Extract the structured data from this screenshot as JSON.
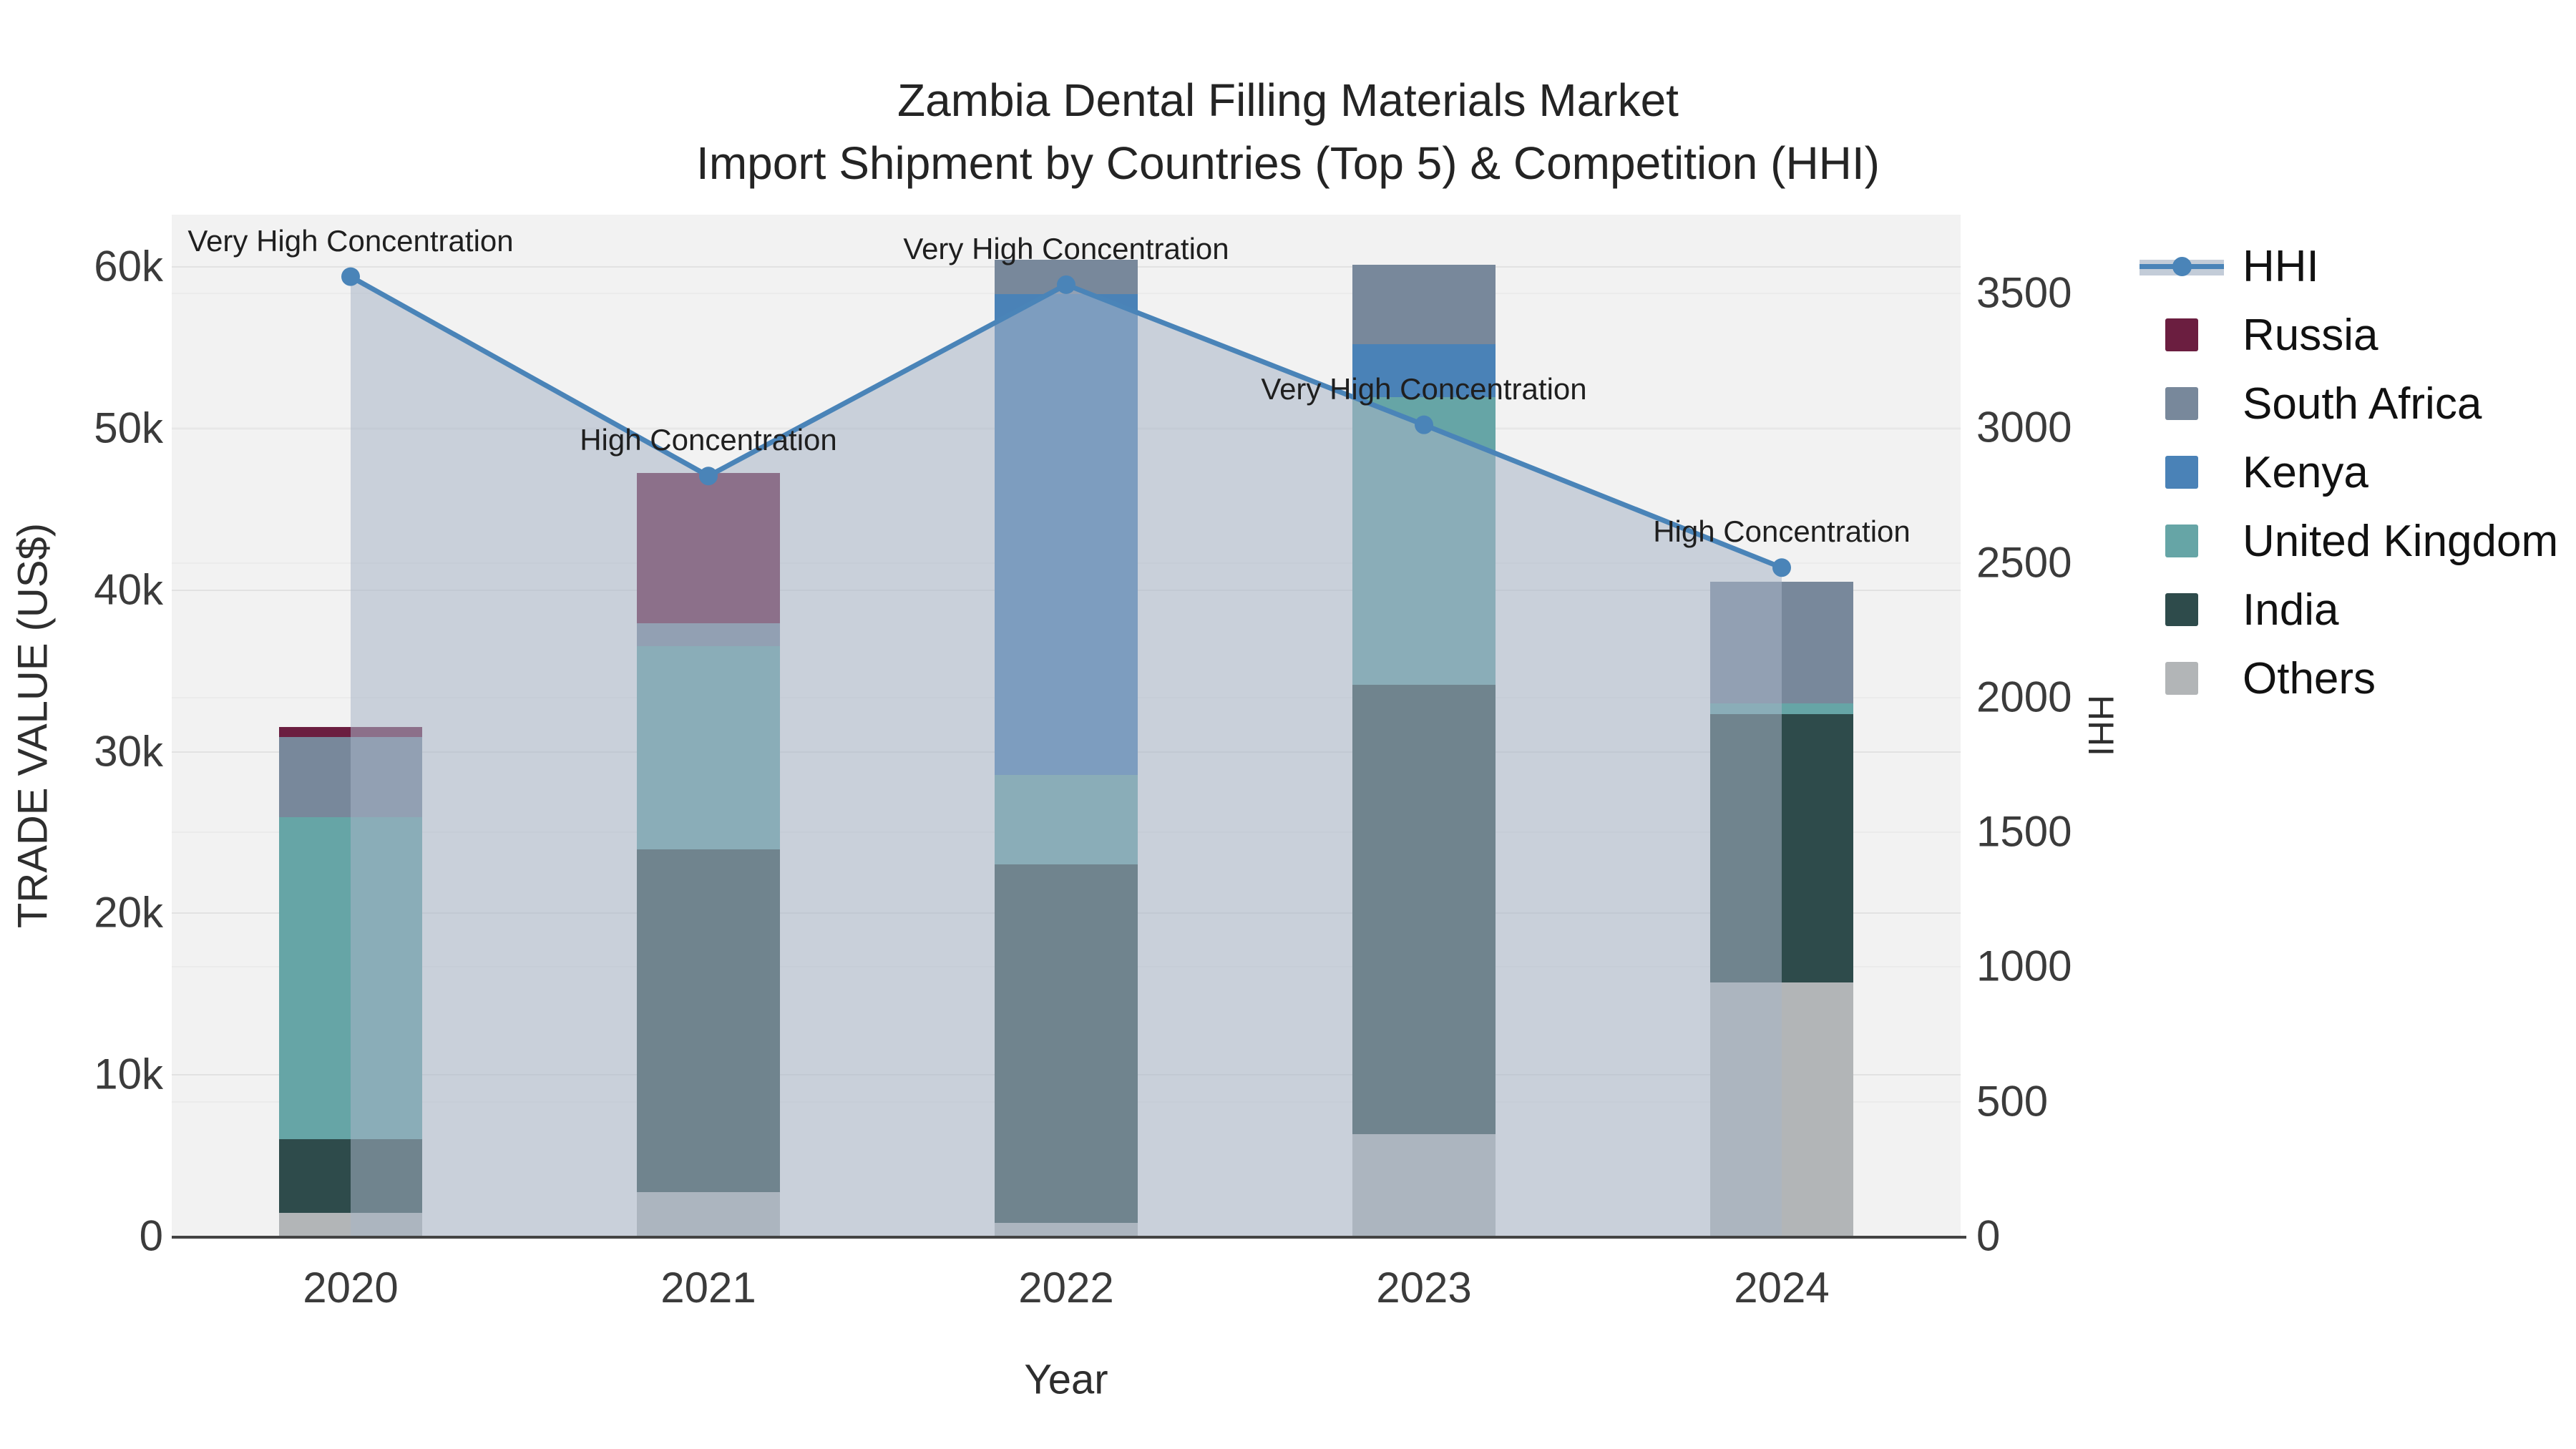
{
  "title": {
    "line1": "Zambia Dental Filling Materials Market",
    "line2": "Import Shipment by Countries (Top 5) & Competition (HHI)"
  },
  "axes": {
    "x": {
      "label": "Year"
    },
    "y_left": {
      "label": "TRADE VALUE (US$)"
    },
    "y_right": {
      "label": "HHI"
    }
  },
  "colors": {
    "russia": "#6B1E40",
    "south_africa": "#78889B",
    "kenya": "#4A82B7",
    "united_kingdom": "#66A5A6",
    "india": "#2E4B4B",
    "others": "#B2B5B7",
    "hhi_line": "#4A84B8",
    "hhi_fill": "rgba(168,181,199,0.55)",
    "legend_band": "#C3CCD8",
    "plot_bg": "#F2F2F2",
    "axis_line": "#444444"
  },
  "legend": {
    "items": [
      {
        "label": "HHI",
        "type": "line",
        "color_key": "hhi_line"
      },
      {
        "label": "Russia",
        "type": "swatch",
        "color_key": "russia"
      },
      {
        "label": "South Africa",
        "type": "swatch",
        "color_key": "south_africa"
      },
      {
        "label": "Kenya",
        "type": "swatch",
        "color_key": "kenya"
      },
      {
        "label": "United Kingdom",
        "type": "swatch",
        "color_key": "united_kingdom"
      },
      {
        "label": "India",
        "type": "swatch",
        "color_key": "india"
      },
      {
        "label": "Others",
        "type": "swatch",
        "color_key": "others"
      }
    ]
  },
  "chart_data": {
    "type": "bar",
    "subtype": "stacked-bar-with-line",
    "title": "Zambia Dental Filling Materials Market — Import Shipment by Countries (Top 5) & Competition (HHI)",
    "categories": [
      "2020",
      "2021",
      "2022",
      "2023",
      "2024"
    ],
    "xlabel": "Year",
    "ylabel_left": "TRADE VALUE (US$)",
    "ylabel_right": "HHI",
    "ylim_left": [
      0,
      63200
    ],
    "ylim_right": [
      0,
      3790
    ],
    "grid": true,
    "legend_position": "right",
    "yticks_left": {
      "values": [
        0,
        10000,
        20000,
        30000,
        40000,
        50000,
        60000
      ],
      "labels": [
        "0",
        "10k",
        "20k",
        "30k",
        "40k",
        "50k",
        "60k"
      ]
    },
    "yticks_right": {
      "values": [
        0,
        500,
        1000,
        1500,
        2000,
        2500,
        3000,
        3500
      ],
      "labels": [
        "0",
        "500",
        "1000",
        "1500",
        "2000",
        "2500",
        "3000",
        "3500"
      ]
    },
    "series": [
      {
        "name": "Others",
        "color_key": "others",
        "axis": "left",
        "values": [
          1400,
          2700,
          800,
          6300,
          15700
        ]
      },
      {
        "name": "India",
        "color_key": "india",
        "axis": "left",
        "values": [
          4600,
          21200,
          22200,
          27800,
          16600
        ]
      },
      {
        "name": "United Kingdom",
        "color_key": "united_kingdom",
        "axis": "left",
        "values": [
          19900,
          12600,
          5500,
          17800,
          650
        ]
      },
      {
        "name": "Kenya",
        "color_key": "kenya",
        "axis": "left",
        "values": [
          0,
          0,
          29800,
          3300,
          0
        ]
      },
      {
        "name": "South Africa",
        "color_key": "south_africa",
        "axis": "left",
        "values": [
          4950,
          1400,
          2100,
          4900,
          7550
        ]
      },
      {
        "name": "Russia",
        "color_key": "russia",
        "axis": "left",
        "values": [
          650,
          9300,
          0,
          0,
          0
        ]
      }
    ],
    "line_series": {
      "name": "HHI",
      "axis": "right",
      "fill_to_zero": true,
      "values": [
        3560,
        2820,
        3530,
        3010,
        2480
      ]
    },
    "annotations": [
      {
        "category": "2020",
        "text": "Very High Concentration"
      },
      {
        "category": "2021",
        "text": "High Concentration"
      },
      {
        "category": "2022",
        "text": "Very High Concentration"
      },
      {
        "category": "2023",
        "text": "Very High Concentration"
      },
      {
        "category": "2024",
        "text": "High Concentration"
      }
    ]
  }
}
